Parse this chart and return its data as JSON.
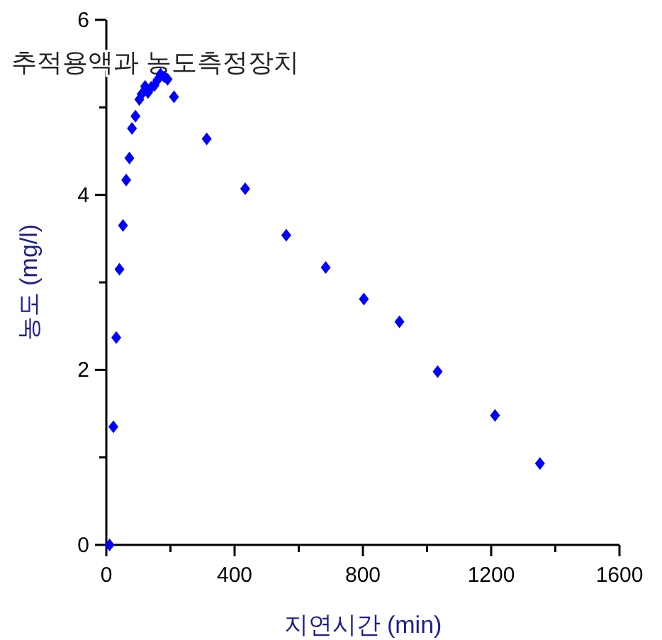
{
  "chart_data": {
    "type": "scatter",
    "title": "추적용액과 농도측정장치",
    "xlabel": "지연시간 (min)",
    "ylabel": "농도 (mg/l)",
    "series": [
      {
        "color": "#0000ff",
        "x": [
          10,
          22,
          31,
          41,
          52,
          62,
          72,
          80,
          91,
          103,
          110,
          121,
          130,
          140,
          150,
          159,
          169,
          181,
          191,
          211,
          313,
          433,
          561,
          684,
          803,
          914,
          1033,
          1212,
          1352
        ],
        "values": [
          0,
          1.35,
          2.37,
          3.15,
          3.65,
          4.17,
          4.42,
          4.76,
          4.9,
          5.09,
          5.15,
          5.24,
          5.17,
          5.23,
          5.25,
          5.31,
          5.38,
          5.35,
          5.32,
          5.12,
          4.64,
          4.07,
          3.54,
          3.17,
          2.81,
          2.55,
          1.98,
          1.48,
          0.93
        ]
      }
    ],
    "xlim": [
      0,
      1600
    ],
    "ylim": [
      0,
      6
    ],
    "xticks": [
      0,
      {
        "value": 200,
        "label": null
      },
      400,
      {
        "value": 600,
        "label": null
      },
      800,
      {
        "value": 1000,
        "label": null
      },
      1200,
      {
        "value": 1400,
        "label": null
      },
      1600
    ],
    "yticks": [
      0,
      {
        "value": 1,
        "label": null
      },
      2,
      {
        "value": 3,
        "label": null
      },
      4,
      {
        "value": 5,
        "label": null
      },
      6
    ],
    "marker": "diamond",
    "grid": false
  }
}
